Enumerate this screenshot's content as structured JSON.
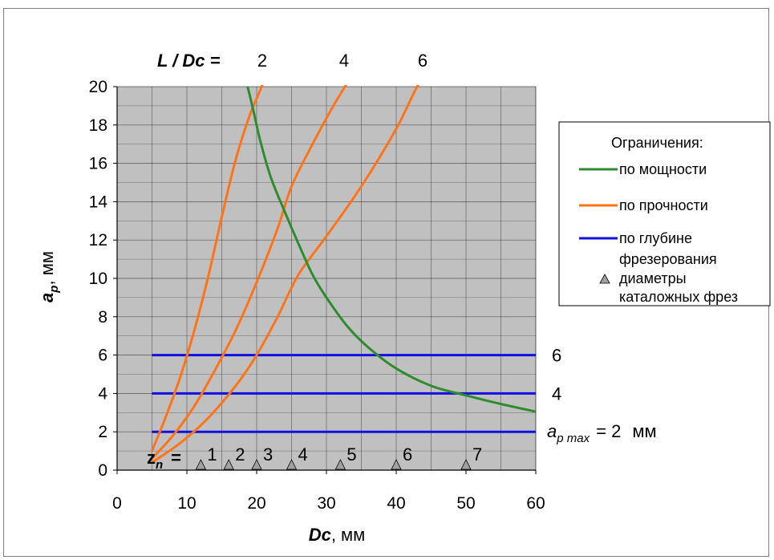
{
  "chart_data": {
    "type": "line",
    "xlabel_main": "Dc",
    "xlabel_unit": ", мм",
    "ylabel_main": "a",
    "ylabel_sub": "p",
    "ylabel_unit": ",  мм",
    "xlim": [
      0,
      60
    ],
    "ylim": [
      0,
      20
    ],
    "xticks": [
      0,
      10,
      20,
      30,
      40,
      50,
      60
    ],
    "yticks": [
      0,
      2,
      4,
      6,
      8,
      10,
      12,
      14,
      16,
      18,
      20
    ],
    "grid": true,
    "plot_background": "#c0c0c0",
    "colors": {
      "power": "#2e8b2e",
      "strength": "#ff7418",
      "depth": "#1010e0",
      "marker": "#a0a0a0"
    },
    "power_curve": {
      "x": [
        18.7,
        19.5,
        20.5,
        22,
        24,
        26,
        28,
        30,
        33,
        36,
        40,
        45,
        50,
        55,
        60
      ],
      "y": [
        20,
        18.8,
        17.2,
        15.3,
        13.5,
        11.8,
        10.2,
        9.0,
        7.5,
        6.4,
        5.3,
        4.4,
        3.9,
        3.45,
        3.05
      ]
    },
    "strength_curves": [
      {
        "label": "2",
        "x": [
          5,
          7,
          9,
          11,
          13,
          15,
          17,
          19,
          20.5,
          21.2
        ],
        "y": [
          1.0,
          2.8,
          4.8,
          7.2,
          10.0,
          13.2,
          16.2,
          18.5,
          19.8,
          20.5
        ]
      },
      {
        "label": "4",
        "x": [
          5,
          8,
          11,
          14,
          17,
          20,
          23,
          25,
          28,
          31,
          33.5
        ],
        "y": [
          0.6,
          1.8,
          3.3,
          5.2,
          7.3,
          9.8,
          12.6,
          14.8,
          17.0,
          19.0,
          20.5
        ]
      },
      {
        "label": "6",
        "x": [
          5,
          9,
          13,
          17,
          20,
          23,
          26,
          30,
          35,
          40,
          43,
          45
        ],
        "y": [
          0.4,
          1.4,
          2.7,
          4.4,
          6.0,
          8.0,
          10.2,
          12.2,
          14.8,
          17.8,
          20.0,
          21.0
        ]
      }
    ],
    "depth_lines": [
      {
        "label": "6",
        "value": 6,
        "x": [
          5,
          60
        ]
      },
      {
        "label": "4",
        "value": 4,
        "x": [
          5,
          60
        ]
      },
      {
        "label": "2",
        "value": 2,
        "x": [
          5,
          60
        ]
      }
    ],
    "top_label_prefix": "L / Dc  =",
    "top_labels": [
      "2",
      "4",
      "6"
    ],
    "ap_max_main": "a",
    "ap_max_sub": "p max",
    "ap_max_tail": "= 2",
    "ap_max_unit": "мм",
    "zn_main": "z",
    "zn_sub": "n",
    "zn_eq": "=",
    "catalog_diameters": {
      "x": [
        12,
        16,
        20,
        25,
        32,
        40,
        50
      ],
      "z": [
        "1",
        "2",
        "3",
        "4",
        "5",
        "6",
        "7"
      ]
    },
    "legend": {
      "title": "Ограничения:",
      "items": [
        "по мощности",
        "по прочности",
        "по глубине",
        "фрезерования",
        "диаметры",
        "каталожных фрез"
      ]
    }
  }
}
